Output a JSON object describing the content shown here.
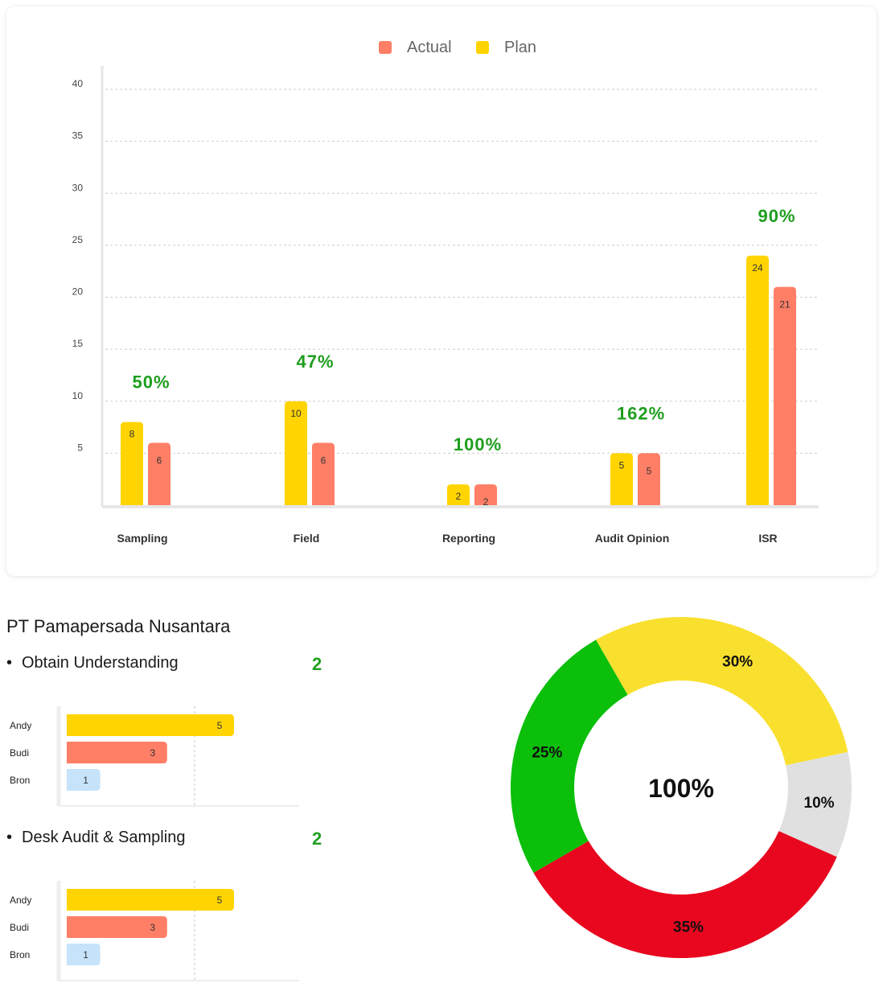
{
  "colors": {
    "plan": "#FFD400",
    "actual": "#FF7F66",
    "third": "#C6E3FA",
    "pct_text": "#1E9E1E",
    "grid": "#cfcfcf",
    "donut_yellow": "#F9E02F",
    "donut_gray": "#E0E0E0",
    "donut_red": "#E8071E",
    "donut_green": "#0BBF0B"
  },
  "chart_data": [
    {
      "type": "bar",
      "legend": [
        "Actual",
        "Plan"
      ],
      "legend_position": "top-center",
      "categories": [
        "Sampling",
        "Field",
        "Reporting",
        "Audit Opinion",
        "ISR"
      ],
      "series": [
        {
          "name": "Plan",
          "values": [
            8,
            10,
            2,
            5,
            24
          ]
        },
        {
          "name": "Actual",
          "values": [
            6,
            6,
            2,
            5,
            21
          ]
        }
      ],
      "annotations": [
        "50%",
        "47%",
        "100%",
        "162%",
        "90%"
      ],
      "y_ticks": [
        5,
        10,
        15,
        20,
        25,
        30,
        35,
        40
      ],
      "ylim": [
        0,
        40
      ],
      "grid": true
    },
    {
      "type": "bar",
      "orientation": "horizontal",
      "categories": [
        "Andy",
        "Budi",
        "Bron"
      ],
      "values": [
        5,
        3,
        1
      ],
      "xlim": [
        0,
        7
      ]
    },
    {
      "type": "bar",
      "orientation": "horizontal",
      "categories": [
        "Andy",
        "Budi",
        "Bron"
      ],
      "values": [
        5,
        3,
        1
      ],
      "xlim": [
        0,
        7
      ]
    },
    {
      "type": "pie",
      "donut": true,
      "center_label": "100%",
      "slices": [
        {
          "label": "30%",
          "value": 30,
          "color": "#F9E02F"
        },
        {
          "label": "10%",
          "value": 10,
          "color": "#E0E0E0"
        },
        {
          "label": "35%",
          "value": 35,
          "color": "#E8071E"
        },
        {
          "label": "25%",
          "value": 25,
          "color": "#0BBF0B"
        }
      ]
    }
  ],
  "company": {
    "name": "PT Pamapersada Nusantara"
  },
  "sections": [
    {
      "bullet": "•",
      "label": "Obtain Understanding",
      "count": "2"
    },
    {
      "bullet": "•",
      "label": "Desk Audit & Sampling",
      "count": "2"
    }
  ]
}
